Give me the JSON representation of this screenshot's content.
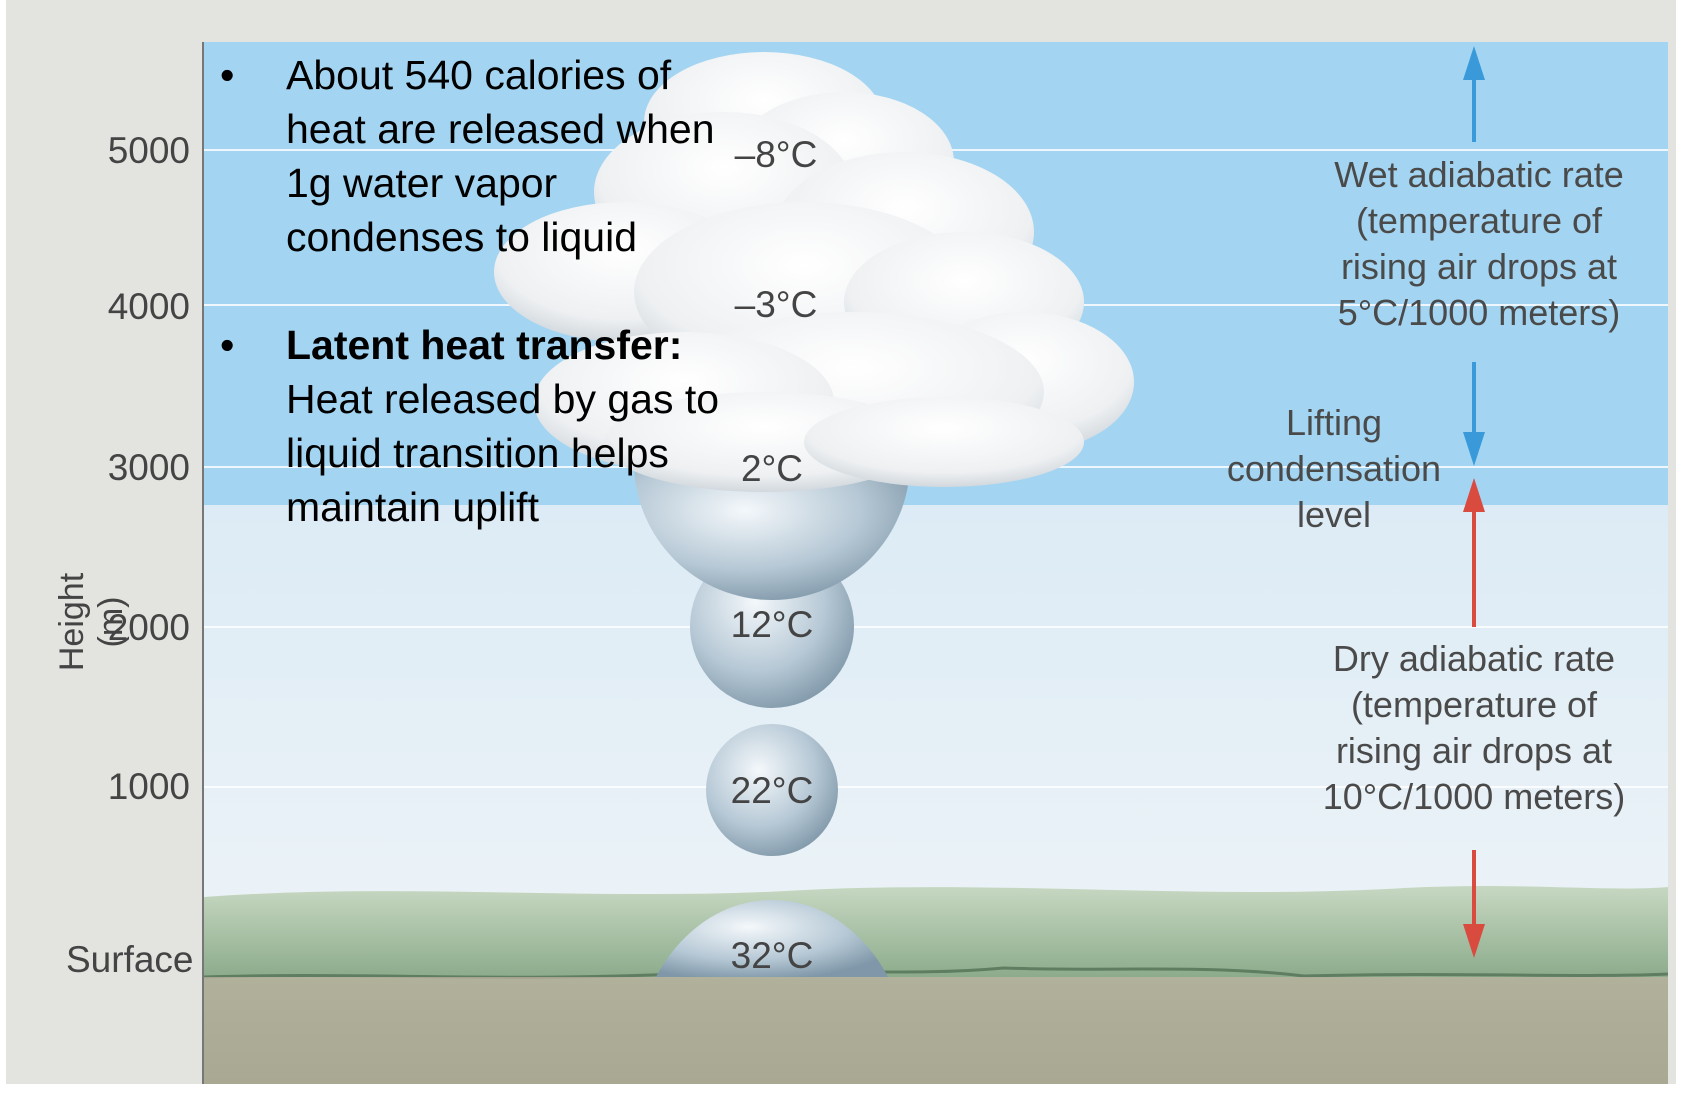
{
  "axis": {
    "title": "Height (m)",
    "ticks": [
      "5000",
      "4000",
      "3000",
      "2000",
      "1000",
      "Surface"
    ]
  },
  "bullets": [
    {
      "marker": "•",
      "bold": "",
      "text": "About 540 calories of heat are released when 1g water vapor condenses to liquid"
    },
    {
      "marker": "•",
      "bold": "Latent heat transfer:",
      "text": " Heat released by gas to liquid transition helps maintain uplift"
    }
  ],
  "temperatures": [
    "–8°C",
    "–3°C",
    "2°C",
    "12°C",
    "22°C",
    "32°C"
  ],
  "labels": {
    "wet": "Wet adiabatic rate (temperature of rising air drops at 5°C/1000 meters)",
    "lcl": "Lifting condensation level",
    "dry": "Dry adiabatic rate (temperature of rising air drops at 10°C/1000 meters)"
  },
  "colors": {
    "sky_upper": "#9fd3f1",
    "sky_lower": "#dcebf5",
    "wet_arrow": "#3a9ad9",
    "dry_arrow": "#d94a3f",
    "ground": "#8fae8c"
  },
  "chart_data": {
    "type": "diagram",
    "title": "",
    "ylabel": "Height (m)",
    "heights_m": [
      5000,
      4000,
      3000,
      2000,
      1000,
      0
    ],
    "temperatures_c": [
      -8,
      -3,
      2,
      12,
      22,
      32
    ],
    "lifting_condensation_level_m": 3000,
    "dry_rate_c_per_1000m": 10,
    "wet_rate_c_per_1000m": 5
  }
}
